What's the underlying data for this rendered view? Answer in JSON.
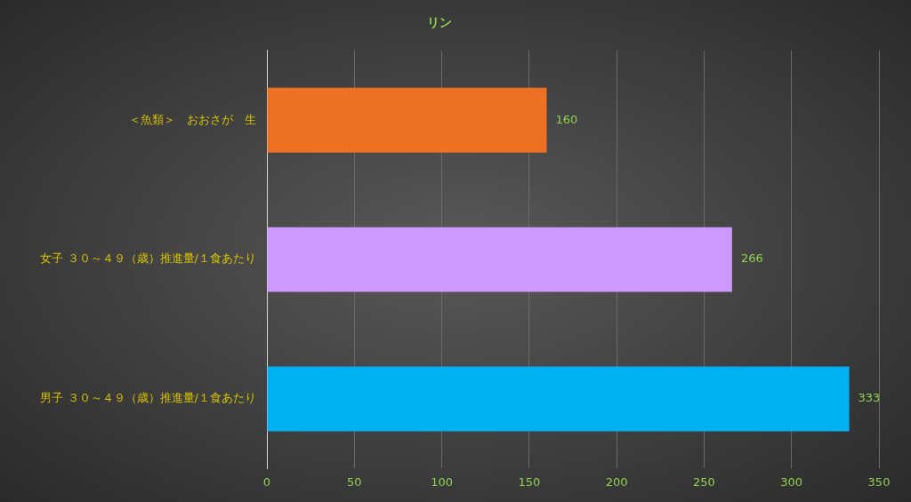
{
  "chart_data": {
    "type": "bar",
    "orientation": "horizontal",
    "title": "リン",
    "categories": [
      "＜魚類＞　おおさが　生",
      "女子 ３０～４９（歳）推進量/１食あたり",
      "男子 ３０～４９（歳）推進量/１食あたり"
    ],
    "values": [
      160,
      266,
      333
    ],
    "colors": [
      "#ed7125",
      "#cc99ff",
      "#00b0f0"
    ],
    "xlim": [
      0,
      350
    ],
    "xticks": [
      0,
      50,
      100,
      150,
      200,
      250,
      300,
      350
    ],
    "grid": "x",
    "data_labels": true,
    "legend": false
  }
}
